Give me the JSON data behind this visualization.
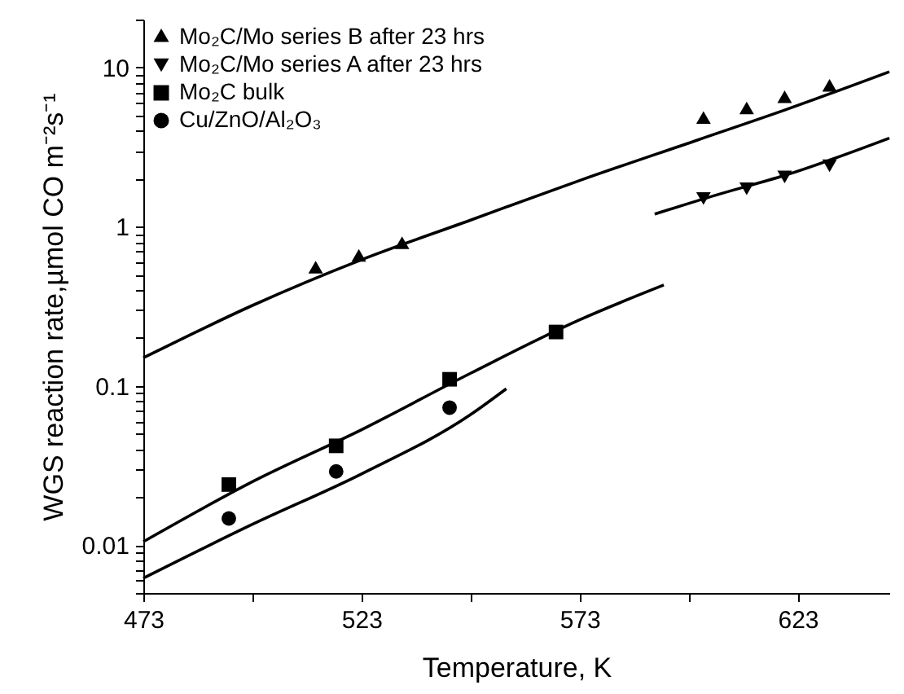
{
  "chart_data": {
    "type": "scatter",
    "xlabel": "Temperature, K",
    "ylabel": "WGS reaction rate,µmol CO m⁻²s⁻¹",
    "log": "y",
    "legend": "top left",
    "xlim": [
      473,
      644
    ],
    "xticks": [
      473,
      {
        "value": 498,
        "label": null
      },
      523,
      {
        "value": 548,
        "label": null
      },
      573,
      {
        "value": 598,
        "label": null
      },
      623
    ],
    "ylim": [
      0.005,
      20
    ],
    "yticks": [
      {
        "value": 0.005,
        "label": null
      },
      {
        "value": 0.006,
        "label": null
      },
      {
        "value": 0.007,
        "label": null
      },
      {
        "value": 0.008,
        "label": null
      },
      {
        "value": 0.009,
        "label": null
      },
      0.01,
      {
        "value": 0.02,
        "label": null
      },
      {
        "value": 0.03,
        "label": null
      },
      {
        "value": 0.04,
        "label": null
      },
      {
        "value": 0.05,
        "label": null
      },
      {
        "value": 0.06,
        "label": null
      },
      {
        "value": 0.07,
        "label": null
      },
      {
        "value": 0.08,
        "label": null
      },
      {
        "value": 0.09,
        "label": null
      },
      0.1,
      {
        "value": 0.2,
        "label": null
      },
      {
        "value": 0.3,
        "label": null
      },
      {
        "value": 0.4,
        "label": null
      },
      {
        "value": 0.5,
        "label": null
      },
      {
        "value": 0.6,
        "label": null
      },
      {
        "value": 0.7,
        "label": null
      },
      {
        "value": 0.8,
        "label": null
      },
      {
        "value": 0.9,
        "label": null
      },
      1,
      {
        "value": 2,
        "label": null
      },
      {
        "value": 3,
        "label": null
      },
      {
        "value": 4,
        "label": null
      },
      {
        "value": 5,
        "label": null
      },
      {
        "value": 6,
        "label": null
      },
      {
        "value": 7,
        "label": null
      },
      {
        "value": 8,
        "label": null
      },
      {
        "value": 9,
        "label": null
      },
      10,
      {
        "value": 20,
        "label": null
      }
    ],
    "series": [
      {
        "name": "Mo₂C/Mo series B after 23 hrs",
        "color": "#000000",
        "marker": "triangle",
        "x": [
          512.5,
          522.4,
          532.3,
          601.4,
          611.3,
          620,
          630.3
        ],
        "values": [
          0.54,
          0.64,
          0.77,
          4.7,
          5.4,
          6.35,
          7.5
        ]
      },
      {
        "name": "Mo₂C/Mo series A after 23 hrs",
        "color": "#000000",
        "marker": "triangle-down",
        "x": [
          601.4,
          611.3,
          620,
          630.3
        ],
        "values": [
          1.5,
          1.73,
          2.05,
          2.41
        ]
      },
      {
        "name": "Mo₂C bulk",
        "color": "#000000",
        "marker": "square",
        "x": [
          492.6,
          517.2,
          543.2,
          567.6
        ],
        "values": [
          0.024,
          0.042,
          0.11,
          0.218
        ]
      },
      {
        "name": "Cu/ZnO/Al₂O₃",
        "color": "#000000",
        "marker": "circle",
        "x": [
          492.6,
          517.2,
          543.2
        ],
        "values": [
          0.0147,
          0.029,
          0.073
        ]
      },
      {
        "type": "line",
        "color": "#000000",
        "x": [
          473,
          498,
          523,
          548,
          573,
          600,
          620,
          644
        ],
        "values": [
          0.15,
          0.32,
          0.62,
          1.1,
          1.95,
          3.5,
          5.4,
          9.4
        ]
      },
      {
        "type": "line",
        "color": "#000000",
        "x": [
          590.2,
          605,
          620,
          644
        ],
        "values": [
          1.2,
          1.6,
          2.1,
          3.6
        ]
      },
      {
        "type": "line",
        "color": "#000000",
        "x": [
          473,
          498,
          523,
          548,
          573,
          592.3
        ],
        "values": [
          0.0105,
          0.025,
          0.053,
          0.12,
          0.26,
          0.43
        ]
      },
      {
        "type": "line",
        "color": "#000000",
        "x": [
          473,
          498,
          523,
          548,
          556.2
        ],
        "values": [
          0.0062,
          0.0135,
          0.028,
          0.066,
          0.096
        ]
      }
    ]
  }
}
